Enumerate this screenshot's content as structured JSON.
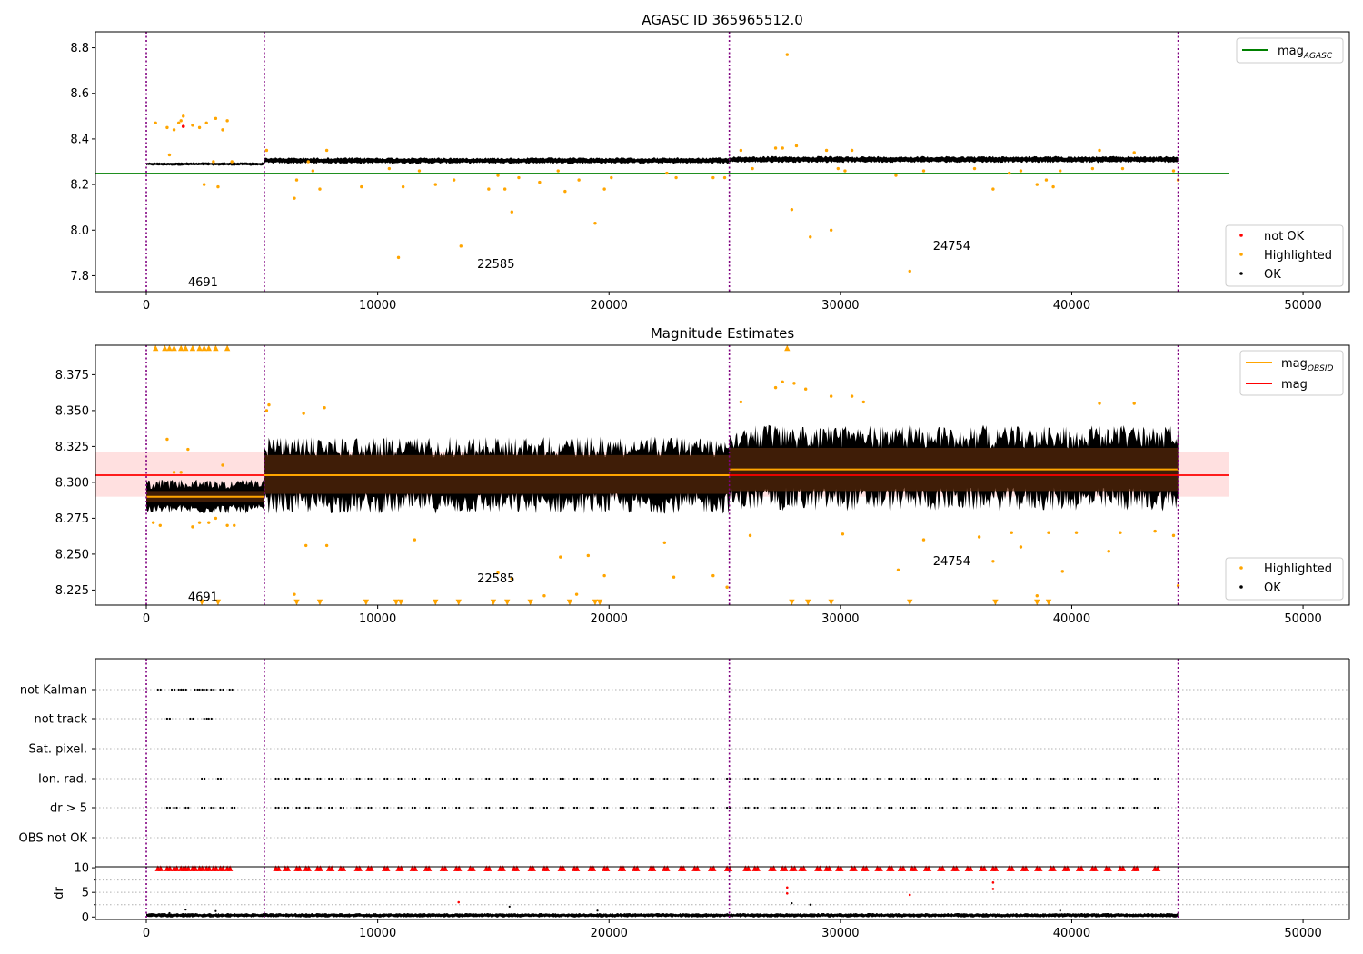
{
  "chart_data": [
    {
      "type": "scatter",
      "title": "AGASC ID 365965512.0",
      "xlim": [
        -2200,
        52000
      ],
      "ylim": [
        7.73,
        8.87
      ],
      "xticks": [
        0,
        10000,
        20000,
        30000,
        40000,
        50000
      ],
      "yticks": [
        7.8,
        8.0,
        8.2,
        8.4,
        8.6,
        8.8
      ],
      "ytick_labels": [
        "7.8",
        "8.0",
        "8.2",
        "8.4",
        "8.6",
        "8.8"
      ],
      "vlines": [
        0,
        5100,
        25200,
        44600
      ],
      "hline": {
        "name": "mag_AGASC",
        "label_main": "mag",
        "label_sub": "AGASC",
        "y": 8.248,
        "x_end": 46800,
        "color": "#008000"
      },
      "obsid_annotations": [
        {
          "text": "4691",
          "x": 1800,
          "y": 7.77
        },
        {
          "text": "22585",
          "x": 14300,
          "y": 7.85
        },
        {
          "text": "24754",
          "x": 34000,
          "y": 7.93
        }
      ],
      "band_series": [
        {
          "name": "OK",
          "x_start": 0,
          "x_end": 5100,
          "center": 8.29,
          "amp": 0.008
        },
        {
          "name": "OK",
          "x_start": 5100,
          "x_end": 25200,
          "center": 8.305,
          "amp": 0.014
        },
        {
          "name": "OK",
          "x_start": 25200,
          "x_end": 44600,
          "center": 8.31,
          "amp": 0.015
        }
      ],
      "highlighted_points": [
        [
          400,
          8.47
        ],
        [
          900,
          8.45
        ],
        [
          1000,
          8.33
        ],
        [
          1200,
          8.44
        ],
        [
          1400,
          8.47
        ],
        [
          1500,
          8.48
        ],
        [
          1600,
          8.5
        ],
        [
          2000,
          8.46
        ],
        [
          2300,
          8.45
        ],
        [
          2500,
          8.2
        ],
        [
          2600,
          8.47
        ],
        [
          2900,
          8.3
        ],
        [
          3000,
          8.49
        ],
        [
          3100,
          8.19
        ],
        [
          3300,
          8.44
        ],
        [
          3500,
          8.48
        ],
        [
          3700,
          8.3
        ],
        [
          5200,
          8.35
        ],
        [
          6400,
          8.14
        ],
        [
          6500,
          8.22
        ],
        [
          7000,
          8.3
        ],
        [
          7200,
          8.26
        ],
        [
          7500,
          8.18
        ],
        [
          7800,
          8.35
        ],
        [
          9300,
          8.19
        ],
        [
          10500,
          8.27
        ],
        [
          10900,
          7.88
        ],
        [
          11100,
          8.19
        ],
        [
          11800,
          8.26
        ],
        [
          12500,
          8.2
        ],
        [
          13300,
          8.22
        ],
        [
          13600,
          7.93
        ],
        [
          14800,
          8.18
        ],
        [
          15200,
          8.24
        ],
        [
          15500,
          8.18
        ],
        [
          15800,
          8.08
        ],
        [
          16100,
          8.23
        ],
        [
          17000,
          8.21
        ],
        [
          17800,
          8.26
        ],
        [
          18100,
          8.17
        ],
        [
          18700,
          8.22
        ],
        [
          19400,
          8.03
        ],
        [
          19800,
          8.18
        ],
        [
          20100,
          8.23
        ],
        [
          22500,
          8.25
        ],
        [
          22900,
          8.23
        ],
        [
          24500,
          8.23
        ],
        [
          25000,
          8.23
        ],
        [
          25700,
          8.35
        ],
        [
          26200,
          8.27
        ],
        [
          27200,
          8.36
        ],
        [
          27500,
          8.36
        ],
        [
          27700,
          8.77
        ],
        [
          27900,
          8.09
        ],
        [
          28100,
          8.37
        ],
        [
          28700,
          7.97
        ],
        [
          29400,
          8.35
        ],
        [
          29600,
          8.0
        ],
        [
          29900,
          8.27
        ],
        [
          30200,
          8.26
        ],
        [
          30500,
          8.35
        ],
        [
          32400,
          8.24
        ],
        [
          33000,
          7.82
        ],
        [
          33600,
          8.26
        ],
        [
          35800,
          8.27
        ],
        [
          36600,
          8.18
        ],
        [
          37300,
          8.25
        ],
        [
          37800,
          8.26
        ],
        [
          38500,
          8.2
        ],
        [
          38900,
          8.22
        ],
        [
          39200,
          8.19
        ],
        [
          39500,
          8.26
        ],
        [
          40900,
          8.27
        ],
        [
          41200,
          8.35
        ],
        [
          42200,
          8.27
        ],
        [
          42700,
          8.34
        ],
        [
          44400,
          8.26
        ],
        [
          44600,
          8.22
        ]
      ],
      "notok_points": [
        [
          1600,
          8.455
        ]
      ],
      "legend_top": [
        {
          "label_main": "mag",
          "label_sub": "AGASC",
          "color": "#008000"
        }
      ],
      "legend_bottom": [
        {
          "label": "not OK",
          "color": "#ff0000"
        },
        {
          "label": "Highlighted",
          "color": "#ffa500"
        },
        {
          "label": "OK",
          "color": "#000000"
        }
      ]
    },
    {
      "type": "scatter",
      "title": "Magnitude Estimates",
      "xlim": [
        -2200,
        52000
      ],
      "ylim": [
        8.2145,
        8.3955
      ],
      "xticks": [
        0,
        10000,
        20000,
        30000,
        40000,
        50000
      ],
      "yticks": [
        8.225,
        8.25,
        8.275,
        8.3,
        8.325,
        8.35,
        8.375
      ],
      "ytick_labels": [
        "8.225",
        "8.250",
        "8.275",
        "8.300",
        "8.325",
        "8.350",
        "8.375"
      ],
      "vlines": [
        0,
        5100,
        25200,
        44600
      ],
      "mag_line": {
        "name": "mag",
        "y": 8.305,
        "x_end": 46800,
        "color": "#ff0000",
        "band": [
          8.29,
          8.321
        ],
        "band_color": "#ffe0e0"
      },
      "mag_obsid": [
        {
          "x_start": 0,
          "x_end": 5100,
          "y": 8.29,
          "band": [
            8.286,
            8.294
          ]
        },
        {
          "x_start": 5100,
          "x_end": 25200,
          "y": 8.305,
          "band": [
            8.292,
            8.319
          ]
        },
        {
          "x_start": 25200,
          "x_end": 44600,
          "y": 8.309,
          "band": [
            8.294,
            8.324
          ]
        }
      ],
      "obsid_annotations": [
        {
          "text": "4691",
          "x": 1800,
          "y": 8.22
        },
        {
          "text": "22585",
          "x": 14300,
          "y": 8.233
        },
        {
          "text": "24754",
          "x": 34000,
          "y": 8.245
        }
      ],
      "band_series": [
        {
          "name": "OK",
          "x_start": 0,
          "x_end": 5100,
          "center": 8.29,
          "amp": 0.012
        },
        {
          "name": "OK",
          "x_start": 5100,
          "x_end": 25200,
          "center": 8.305,
          "amp": 0.027
        },
        {
          "name": "OK",
          "x_start": 25200,
          "x_end": 44600,
          "center": 8.31,
          "amp": 0.03
        }
      ],
      "highlighted_points": [
        [
          300,
          8.272
        ],
        [
          600,
          8.27
        ],
        [
          900,
          8.33
        ],
        [
          1200,
          8.307
        ],
        [
          1500,
          8.307
        ],
        [
          1800,
          8.323
        ],
        [
          2000,
          8.269
        ],
        [
          2300,
          8.272
        ],
        [
          2700,
          8.272
        ],
        [
          3000,
          8.275
        ],
        [
          3300,
          8.312
        ],
        [
          3500,
          8.27
        ],
        [
          3800,
          8.27
        ],
        [
          5200,
          8.35
        ],
        [
          5300,
          8.354
        ],
        [
          6400,
          8.222
        ],
        [
          6800,
          8.348
        ],
        [
          6900,
          8.256
        ],
        [
          7700,
          8.352
        ],
        [
          7800,
          8.256
        ],
        [
          11600,
          8.26
        ],
        [
          15200,
          8.237
        ],
        [
          15800,
          8.233
        ],
        [
          17200,
          8.221
        ],
        [
          17900,
          8.248
        ],
        [
          18600,
          8.222
        ],
        [
          19100,
          8.249
        ],
        [
          19800,
          8.235
        ],
        [
          22400,
          8.258
        ],
        [
          22800,
          8.234
        ],
        [
          24500,
          8.235
        ],
        [
          25100,
          8.227
        ],
        [
          25700,
          8.356
        ],
        [
          26100,
          8.263
        ],
        [
          27200,
          8.366
        ],
        [
          27500,
          8.37
        ],
        [
          28000,
          8.369
        ],
        [
          28500,
          8.365
        ],
        [
          29600,
          8.36
        ],
        [
          30100,
          8.264
        ],
        [
          30500,
          8.36
        ],
        [
          31000,
          8.356
        ],
        [
          32500,
          8.239
        ],
        [
          33600,
          8.26
        ],
        [
          36000,
          8.262
        ],
        [
          36600,
          8.245
        ],
        [
          37400,
          8.265
        ],
        [
          37800,
          8.255
        ],
        [
          38500,
          8.221
        ],
        [
          39000,
          8.265
        ],
        [
          39600,
          8.238
        ],
        [
          40200,
          8.265
        ],
        [
          41200,
          8.355
        ],
        [
          41600,
          8.252
        ],
        [
          42100,
          8.265
        ],
        [
          42700,
          8.355
        ],
        [
          43600,
          8.266
        ],
        [
          44400,
          8.263
        ],
        [
          44600,
          8.228
        ]
      ],
      "clipped_top_x": [
        400,
        800,
        1000,
        1200,
        1500,
        1700,
        2000,
        2300,
        2500,
        2700,
        3000,
        3500,
        27700
      ],
      "clipped_bottom_x": [
        2400,
        3100,
        6500,
        7500,
        9500,
        10800,
        11000,
        12500,
        13500,
        15000,
        15600,
        16600,
        18300,
        19400,
        19600,
        27900,
        28600,
        29600,
        33000,
        36700,
        38500,
        39000
      ],
      "legend_top": [
        {
          "label_main": "mag",
          "label_sub": "OBSID",
          "color": "#ffa500"
        },
        {
          "label_main": "mag",
          "label_sub": "",
          "color": "#ff0000"
        }
      ],
      "legend_bottom": [
        {
          "label": "Highlighted",
          "color": "#ffa500"
        },
        {
          "label": "OK",
          "color": "#000000"
        }
      ]
    },
    {
      "type": "scatter",
      "title": "",
      "xlim": [
        -2200,
        52000
      ],
      "categories": [
        "not Kalman",
        "not track",
        "Sat. pixel.",
        "Ion. rad.",
        "dr > 5",
        "OBS not OK"
      ],
      "vlines": [
        0,
        5100,
        25200,
        44600
      ],
      "flag_points": {
        "not Kalman": [
          500,
          1100,
          1400,
          1500,
          1600,
          2100,
          2300,
          2500,
          2800,
          3200,
          3600
        ],
        "not track": [
          900,
          1900,
          2500,
          2700
        ],
        "Sat. pixel.": [],
        "Ion. rad.": [
          2400,
          3100,
          5600,
          6000,
          6500,
          6900,
          7400,
          7900,
          8400,
          9100,
          9600,
          10300,
          10900,
          11500,
          12100,
          12800,
          13400,
          14000,
          14700,
          15300,
          15900,
          16600,
          17200,
          17900,
          18500,
          19200,
          19800,
          20500,
          21100,
          21800,
          22400,
          23100,
          23700,
          24400,
          25100,
          25900,
          26300,
          27000,
          27500,
          27900,
          28300,
          29000,
          29400,
          29900,
          30500,
          31000,
          31600,
          32100,
          32600,
          33100,
          33700,
          34300,
          34900,
          35500,
          36100,
          36600,
          37300,
          37900,
          38500,
          39100,
          39700,
          40300,
          40900,
          41500,
          42100,
          42700,
          43600
        ],
        "dr > 5": [
          900,
          1200,
          1700,
          2400,
          2800,
          3200,
          3700,
          5600,
          6000,
          6500,
          6900,
          7400,
          7900,
          8400,
          9100,
          9600,
          10300,
          10900,
          11500,
          12100,
          12800,
          13400,
          14000,
          14700,
          15300,
          15900,
          16600,
          17200,
          17900,
          18500,
          19200,
          19800,
          20500,
          21100,
          21800,
          22400,
          23100,
          23700,
          24400,
          25100,
          25900,
          26300,
          27000,
          27500,
          27900,
          28300,
          29000,
          29400,
          29900,
          30500,
          31000,
          31600,
          32100,
          32600,
          33100,
          33700,
          34300,
          34900,
          35500,
          36100,
          36600,
          37300,
          37900,
          38500,
          39100,
          39700,
          40300,
          40900,
          41500,
          42100,
          42700,
          43600
        ],
        "OBS not OK": []
      }
    },
    {
      "type": "scatter",
      "title": "",
      "ylabel": "dr",
      "xlim": [
        -2200,
        52000
      ],
      "ylim": [
        -0.5,
        10.2
      ],
      "xticks": [
        0,
        10000,
        20000,
        30000,
        40000,
        50000
      ],
      "yticks": [
        0,
        5,
        10
      ],
      "ytick_labels": [
        "0",
        "5",
        "10"
      ],
      "vlines": [
        0,
        5100,
        25200,
        44600
      ],
      "red_clipped_x": [
        500,
        900,
        1200,
        1500,
        1700,
        2000,
        2300,
        2600,
        2900,
        3200,
        3500,
        5600,
        6000,
        6500,
        6900,
        7400,
        7900,
        8400,
        9100,
        9600,
        10300,
        10900,
        11500,
        12100,
        12800,
        13400,
        14000,
        14700,
        15300,
        15900,
        16600,
        17200,
        17900,
        18500,
        19200,
        19800,
        20500,
        21100,
        21800,
        22400,
        23100,
        23700,
        24400,
        25100,
        25900,
        26300,
        27000,
        27500,
        27900,
        28300,
        29000,
        29400,
        29900,
        30500,
        31000,
        31600,
        32100,
        32600,
        33100,
        33700,
        34300,
        34900,
        35500,
        36100,
        36600,
        37300,
        37900,
        38500,
        39100,
        39700,
        40300,
        40900,
        41500,
        42100,
        42700,
        43600
      ],
      "red_points": [
        [
          13500,
          3.0
        ],
        [
          27700,
          6.0
        ],
        [
          27700,
          4.8
        ],
        [
          33000,
          4.5
        ],
        [
          36600,
          7.0
        ],
        [
          36600,
          5.7
        ]
      ],
      "black_points": [
        [
          1000,
          0.8
        ],
        [
          1700,
          1.5
        ],
        [
          3000,
          1.2
        ],
        [
          15700,
          2.1
        ],
        [
          19500,
          1.3
        ],
        [
          27900,
          2.8
        ],
        [
          28700,
          2.5
        ],
        [
          39500,
          1.3
        ]
      ]
    }
  ]
}
